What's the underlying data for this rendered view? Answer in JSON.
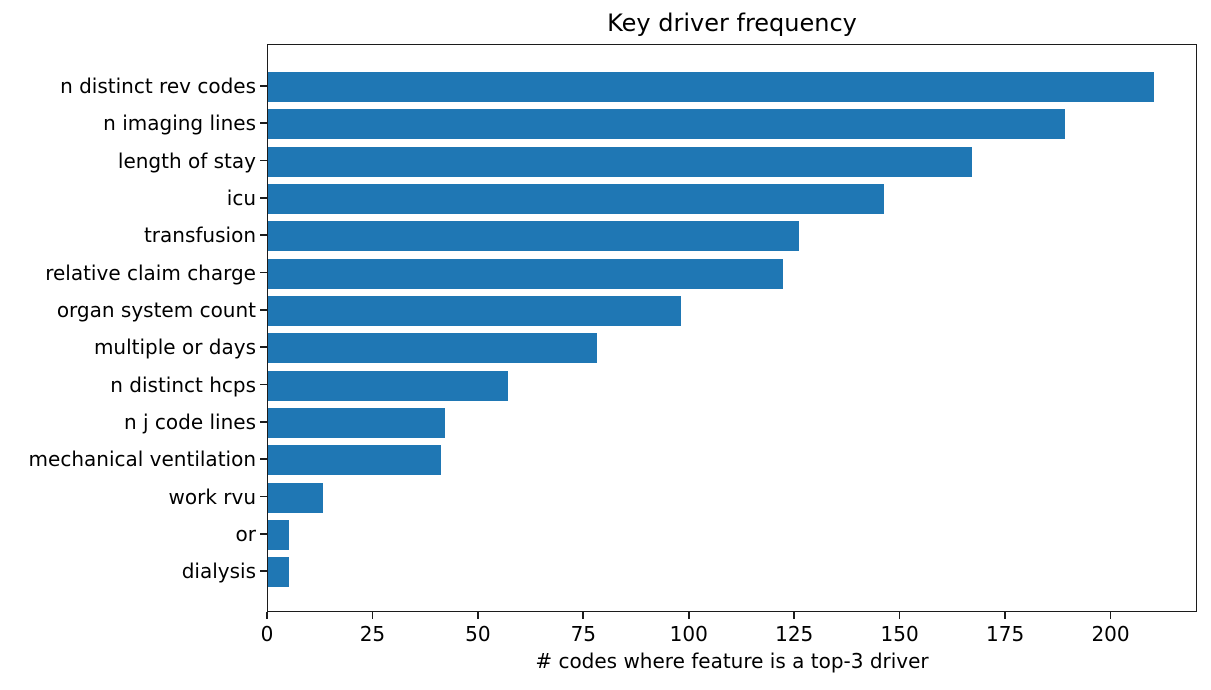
{
  "chart_data": {
    "type": "bar",
    "orientation": "horizontal",
    "title": "Key driver frequency",
    "xlabel": "# codes where feature is a top-3 driver",
    "ylabel": "",
    "categories": [
      "n distinct rev codes",
      "n imaging lines",
      "length of stay",
      "icu",
      "transfusion",
      "relative claim charge",
      "organ system count",
      "multiple or days",
      "n distinct hcps",
      "n j code lines",
      "mechanical ventilation",
      "work rvu",
      "or",
      "dialysis"
    ],
    "values": [
      210,
      189,
      167,
      146,
      126,
      122,
      98,
      78,
      57,
      42,
      41,
      13,
      5,
      5
    ],
    "xticks": [
      0,
      25,
      50,
      75,
      100,
      125,
      150,
      175,
      200
    ],
    "xlim": [
      0,
      220.5
    ],
    "grid": false,
    "legend_position": "none",
    "bar_color": "#1f77b4",
    "axis_color": "#1c1c1c",
    "background_color": "#ffffff"
  }
}
